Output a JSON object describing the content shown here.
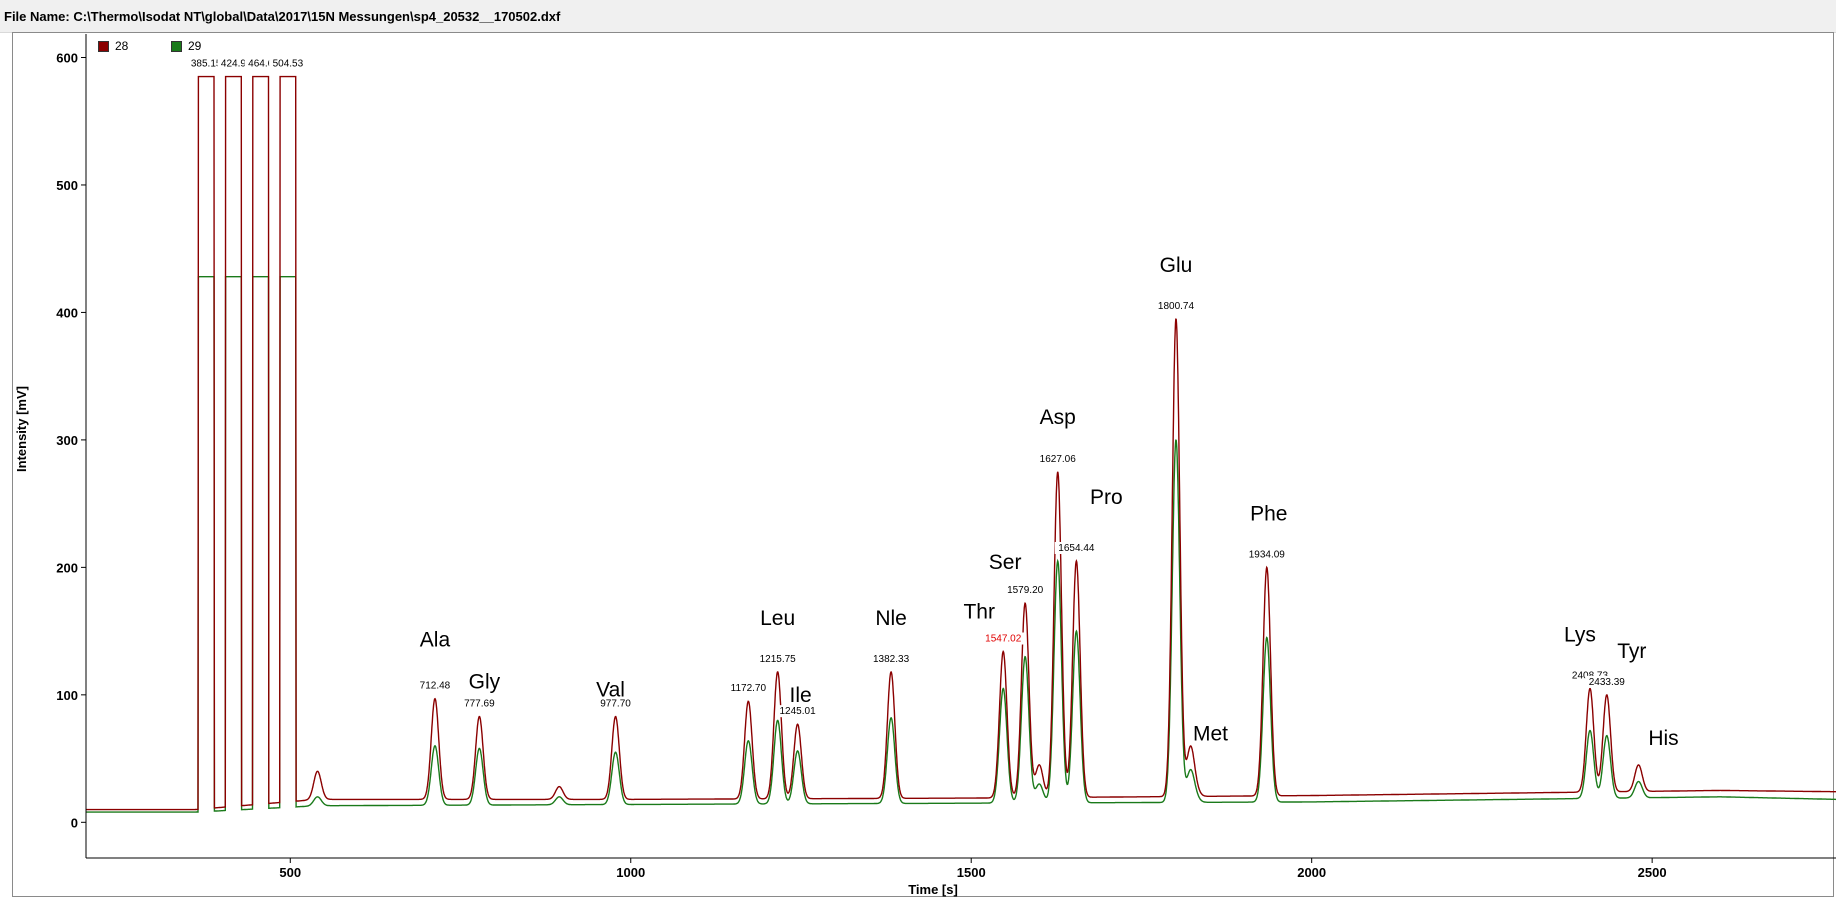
{
  "file_bar": {
    "text": "File Name: C:\\Thermo\\Isodat NT\\global\\Data\\2017\\15N Messungen\\sp4_20532__170502.dxf"
  },
  "legend": [
    {
      "label": "28",
      "color": "#8b0000"
    },
    {
      "label": "29",
      "color": "#1a7a1a"
    }
  ],
  "chart_data": {
    "type": "line",
    "xlabel": "Time [s]",
    "ylabel": "Intensity [mV]",
    "xlim": [
      200,
      2770
    ],
    "ylim": [
      -28,
      620
    ],
    "xticks": [
      500,
      1000,
      1500,
      2000,
      2500
    ],
    "yticks": [
      0,
      100,
      200,
      300,
      400,
      500,
      600
    ],
    "grid": false,
    "legend_position": "top-left",
    "series": [
      {
        "name": "28",
        "color": "#8b0000",
        "baseline": [
          [
            200,
            10
          ],
          [
            360,
            10
          ],
          [
            540,
            18
          ],
          [
            1000,
            18
          ],
          [
            1500,
            19
          ],
          [
            2000,
            21
          ],
          [
            2600,
            25
          ],
          [
            2770,
            24
          ]
        ]
      },
      {
        "name": "29",
        "color": "#1a7a1a",
        "baseline": [
          [
            200,
            8
          ],
          [
            360,
            8
          ],
          [
            540,
            13
          ],
          [
            1000,
            14
          ],
          [
            1500,
            15
          ],
          [
            2000,
            16
          ],
          [
            2600,
            20
          ],
          [
            2770,
            18
          ]
        ]
      }
    ],
    "reference_pulses": [
      {
        "x_start": 365,
        "x_end": 388,
        "series_28": 585,
        "series_29": 428
      },
      {
        "x_start": 405,
        "x_end": 428,
        "series_28": 585,
        "series_29": 428
      },
      {
        "x_start": 445,
        "x_end": 468,
        "series_28": 585,
        "series_29": 428
      },
      {
        "x_start": 485,
        "x_end": 508,
        "series_28": 585,
        "series_29": 428
      }
    ],
    "pulse_labels": [
      "385.15",
      "424.9",
      "464.6",
      "504.53"
    ],
    "peaks": [
      {
        "name": "Ala",
        "rt": "712.48",
        "x": 712.48,
        "series_28": 97,
        "series_29": 60
      },
      {
        "name": "Gly",
        "rt": "777.69",
        "x": 777.69,
        "series_28": 83,
        "series_29": 58
      },
      {
        "name": "Val",
        "rt": "977.70",
        "x": 977.7,
        "series_28": 83,
        "series_29": 55
      },
      {
        "name": "",
        "rt": "1172.70",
        "x": 1172.7,
        "series_28": 95,
        "series_29": 64
      },
      {
        "name": "Leu",
        "rt": "1215.75",
        "x": 1215.75,
        "series_28": 118,
        "series_29": 80
      },
      {
        "name": "Ile",
        "rt": "1245.01",
        "x": 1245.01,
        "series_28": 77,
        "series_29": 56
      },
      {
        "name": "Nle",
        "rt": "1382.33",
        "x": 1382.33,
        "series_28": 118,
        "series_29": 82
      },
      {
        "name": "Thr",
        "rt": "1547.02",
        "x": 1547.02,
        "series_28": 134,
        "series_29": 105,
        "rt_color": "#e00000"
      },
      {
        "name": "Ser",
        "rt": "1579.20",
        "x": 1579.2,
        "series_28": 172,
        "series_29": 130
      },
      {
        "name": "Asp",
        "rt": "1627.06",
        "x": 1627.06,
        "series_28": 275,
        "series_29": 205
      },
      {
        "name": "Pro",
        "rt": "1654.44",
        "x": 1654.44,
        "series_28": 205,
        "series_29": 150
      },
      {
        "name": "Glu",
        "rt": "1800.74",
        "x": 1800.74,
        "series_28": 395,
        "series_29": 300
      },
      {
        "name": "Met",
        "rt": "",
        "x": 1822,
        "series_28": 58,
        "series_29": 40
      },
      {
        "name": "Phe",
        "rt": "1934.09",
        "x": 1934.09,
        "series_28": 200,
        "series_29": 145
      },
      {
        "name": "Lys",
        "rt": "2408.73",
        "x": 2408.73,
        "series_28": 105,
        "series_29": 72
      },
      {
        "name": "Tyr",
        "rt": "2433.39",
        "x": 2433.39,
        "series_28": 100,
        "series_29": 68
      },
      {
        "name": "His",
        "rt": "",
        "x": 2480,
        "series_28": 45,
        "series_29": 32
      }
    ],
    "minor_peaks": [
      {
        "x": 540,
        "series_28": 40,
        "series_29": 20
      },
      {
        "x": 895,
        "series_28": 28,
        "series_29": 20
      },
      {
        "x": 1600,
        "series_28": 45,
        "series_29": 30
      },
      {
        "x": 1830,
        "series_28": 25,
        "series_29": 19
      }
    ]
  }
}
